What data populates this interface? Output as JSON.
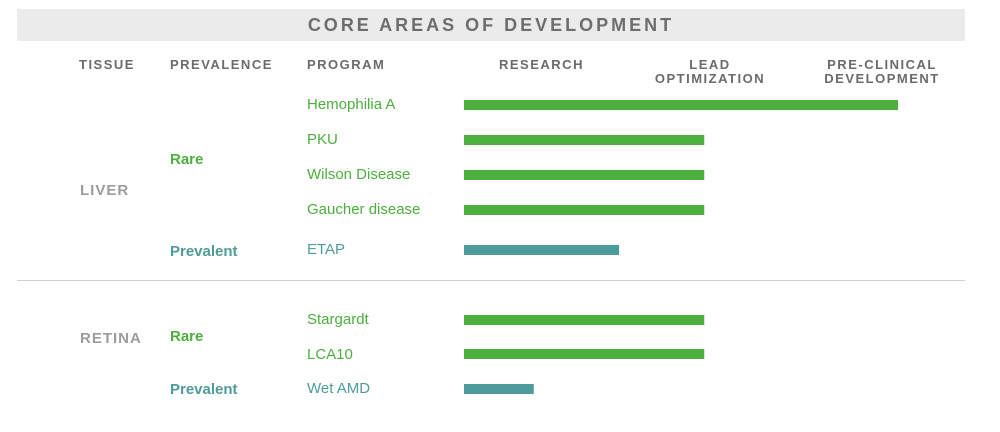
{
  "title": "CORE AREAS OF DEVELOPMENT",
  "headers": {
    "tissue": "TISSUE",
    "prevalence": "PREVALENCE",
    "program": "PROGRAM",
    "research": "RESEARCH",
    "lead_1": "LEAD",
    "lead_2": "OPTIMIZATION",
    "pre_1": "PRE-CLINICAL",
    "pre_2": "DEVELOPMENT"
  },
  "tissues": {
    "liver": "LIVER",
    "retina": "RETINA"
  },
  "prevalence": {
    "rare": "Rare",
    "prevalent": "Prevalent"
  },
  "colors": {
    "rare": "#4caf3e",
    "prevalent": "#4e9b9b"
  },
  "chart_data": {
    "type": "bar",
    "orientation": "horizontal",
    "stages": [
      "RESEARCH",
      "LEAD OPTIMIZATION",
      "PRE-CLINICAL DEVELOPMENT"
    ],
    "xlim": [
      0,
      3
    ],
    "categories": [
      "Hemophilia A",
      "PKU",
      "Wilson Disease",
      "Gaucher disease",
      "ETAP",
      "Stargardt",
      "LCA10",
      "Wet AMD"
    ],
    "values": [
      2.8,
      1.55,
      1.55,
      1.55,
      1.0,
      1.55,
      1.55,
      0.45
    ],
    "groups": [
      "rare",
      "rare",
      "rare",
      "rare",
      "prevalent",
      "rare",
      "rare",
      "prevalent"
    ]
  }
}
